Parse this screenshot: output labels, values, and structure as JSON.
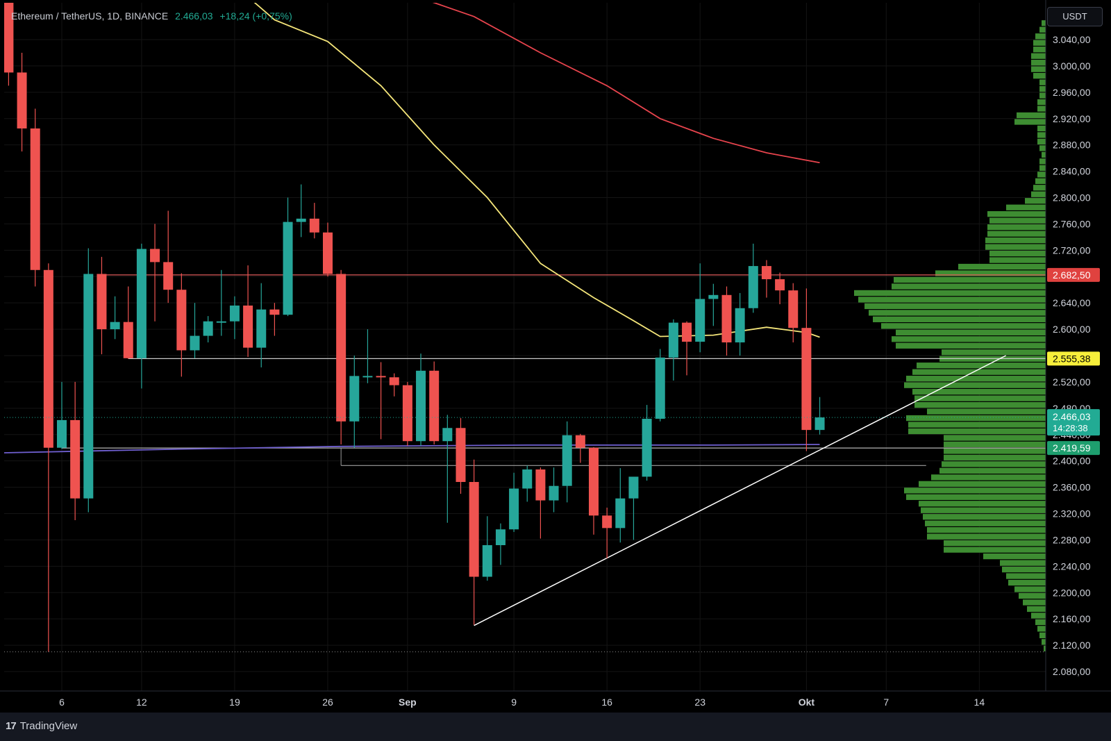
{
  "header": {
    "symbol": "Ethereum / TetherUS, 1D, BINANCE",
    "last_price": "2.466,03",
    "change": "+18,24 (+0,75%)",
    "currency": "USDT"
  },
  "footer": {
    "brand": "TradingView"
  },
  "colors": {
    "up": "#26a69a",
    "down": "#ef5350",
    "ma_fast": "#f5e67a",
    "ma_slow": "#e8444d",
    "ma_long": "#6f5fd0",
    "volume_profile": "#3e8d32",
    "trendline": "#ffffff"
  },
  "chart_data": {
    "type": "candlestick",
    "y_axis": {
      "ticks": [
        "3.040,00",
        "3.000,00",
        "2.960,00",
        "2.920,00",
        "2.880,00",
        "2.840,00",
        "2.800,00",
        "2.760,00",
        "2.720,00",
        "2.680,00",
        "2.640,00",
        "2.600,00",
        "2.560,00",
        "2.520,00",
        "2.480,00",
        "2.440,00",
        "2.400,00",
        "2.360,00",
        "2.320,00",
        "2.280,00",
        "2.240,00",
        "2.200,00",
        "2.160,00",
        "2.120,00",
        "2.080,00"
      ],
      "tick_values": [
        3040,
        3000,
        2960,
        2920,
        2880,
        2840,
        2800,
        2760,
        2720,
        2680,
        2640,
        2600,
        2560,
        2520,
        2480,
        2440,
        2400,
        2360,
        2320,
        2280,
        2240,
        2200,
        2160,
        2120,
        2080
      ]
    },
    "x_axis": {
      "labels": [
        {
          "text": "6",
          "date": "2024-08-06",
          "bold": false
        },
        {
          "text": "12",
          "date": "2024-08-12",
          "bold": false
        },
        {
          "text": "19",
          "date": "2024-08-19",
          "bold": false
        },
        {
          "text": "26",
          "date": "2024-08-26",
          "bold": false
        },
        {
          "text": "Sep",
          "date": "2024-09-01",
          "bold": true
        },
        {
          "text": "9",
          "date": "2024-09-09",
          "bold": false
        },
        {
          "text": "16",
          "date": "2024-09-16",
          "bold": false
        },
        {
          "text": "23",
          "date": "2024-09-23",
          "bold": false
        },
        {
          "text": "Okt",
          "date": "2024-10-01",
          "bold": true
        },
        {
          "text": "7",
          "date": "2024-10-07",
          "bold": false
        },
        {
          "text": "14",
          "date": "2024-10-14",
          "bold": false
        }
      ]
    },
    "candles": [
      {
        "date": "2024-08-02",
        "o": 3210,
        "h": 3250,
        "c": 2990,
        "l": 2970
      },
      {
        "date": "2024-08-03",
        "o": 2990,
        "h": 3020,
        "c": 2905,
        "l": 2870
      },
      {
        "date": "2024-08-04",
        "o": 2905,
        "h": 2935,
        "c": 2690,
        "l": 2665
      },
      {
        "date": "2024-08-05",
        "o": 2690,
        "h": 2700,
        "c": 2420,
        "l": 2110
      },
      {
        "date": "2024-08-06",
        "o": 2420,
        "h": 2520,
        "c": 2462,
        "l": 2418
      },
      {
        "date": "2024-08-07",
        "o": 2462,
        "h": 2520,
        "c": 2343,
        "l": 2310
      },
      {
        "date": "2024-08-08",
        "o": 2343,
        "h": 2723,
        "c": 2684,
        "l": 2322
      },
      {
        "date": "2024-08-09",
        "o": 2684,
        "h": 2710,
        "c": 2600,
        "l": 2562
      },
      {
        "date": "2024-08-10",
        "o": 2600,
        "h": 2650,
        "c": 2611,
        "l": 2585
      },
      {
        "date": "2024-08-11",
        "o": 2611,
        "h": 2665,
        "c": 2556,
        "l": 2555
      },
      {
        "date": "2024-08-12",
        "o": 2556,
        "h": 2730,
        "c": 2722,
        "l": 2510
      },
      {
        "date": "2024-08-13",
        "o": 2722,
        "h": 2760,
        "c": 2702,
        "l": 2612
      },
      {
        "date": "2024-08-14",
        "o": 2702,
        "h": 2780,
        "c": 2660,
        "l": 2640
      },
      {
        "date": "2024-08-15",
        "o": 2660,
        "h": 2685,
        "c": 2568,
        "l": 2528
      },
      {
        "date": "2024-08-16",
        "o": 2568,
        "h": 2640,
        "c": 2590,
        "l": 2556
      },
      {
        "date": "2024-08-17",
        "o": 2590,
        "h": 2620,
        "c": 2612,
        "l": 2580
      },
      {
        "date": "2024-08-18",
        "o": 2612,
        "h": 2690,
        "c": 2612,
        "l": 2590
      },
      {
        "date": "2024-08-19",
        "o": 2612,
        "h": 2650,
        "c": 2636,
        "l": 2585
      },
      {
        "date": "2024-08-20",
        "o": 2636,
        "h": 2697,
        "c": 2572,
        "l": 2558
      },
      {
        "date": "2024-08-21",
        "o": 2572,
        "h": 2670,
        "c": 2630,
        "l": 2542
      },
      {
        "date": "2024-08-22",
        "o": 2630,
        "h": 2640,
        "c": 2622,
        "l": 2590
      },
      {
        "date": "2024-08-23",
        "o": 2622,
        "h": 2800,
        "c": 2763,
        "l": 2620
      },
      {
        "date": "2024-08-24",
        "o": 2763,
        "h": 2820,
        "c": 2768,
        "l": 2740
      },
      {
        "date": "2024-08-25",
        "o": 2768,
        "h": 2792,
        "c": 2747,
        "l": 2738
      },
      {
        "date": "2024-08-26",
        "o": 2747,
        "h": 2762,
        "c": 2684,
        "l": 2680
      },
      {
        "date": "2024-08-27",
        "o": 2684,
        "h": 2690,
        "c": 2460,
        "l": 2425
      },
      {
        "date": "2024-08-28",
        "o": 2460,
        "h": 2560,
        "c": 2529,
        "l": 2420
      },
      {
        "date": "2024-08-29",
        "o": 2529,
        "h": 2600,
        "c": 2529,
        "l": 2518
      },
      {
        "date": "2024-08-30",
        "o": 2529,
        "h": 2550,
        "c": 2527,
        "l": 2433
      },
      {
        "date": "2024-08-31",
        "o": 2527,
        "h": 2533,
        "c": 2515,
        "l": 2498
      },
      {
        "date": "2024-09-01",
        "o": 2515,
        "h": 2520,
        "c": 2430,
        "l": 2423
      },
      {
        "date": "2024-09-02",
        "o": 2430,
        "h": 2563,
        "c": 2537,
        "l": 2423
      },
      {
        "date": "2024-09-03",
        "o": 2537,
        "h": 2551,
        "c": 2430,
        "l": 2425
      },
      {
        "date": "2024-09-04",
        "o": 2430,
        "h": 2470,
        "c": 2450,
        "l": 2306
      },
      {
        "date": "2024-09-05",
        "o": 2450,
        "h": 2465,
        "c": 2368,
        "l": 2350
      },
      {
        "date": "2024-09-06",
        "o": 2368,
        "h": 2402,
        "c": 2224,
        "l": 2151
      },
      {
        "date": "2024-09-07",
        "o": 2224,
        "h": 2316,
        "c": 2272,
        "l": 2218
      },
      {
        "date": "2024-09-08",
        "o": 2272,
        "h": 2305,
        "c": 2296,
        "l": 2242
      },
      {
        "date": "2024-09-09",
        "o": 2296,
        "h": 2382,
        "c": 2358,
        "l": 2292
      },
      {
        "date": "2024-09-10",
        "o": 2358,
        "h": 2393,
        "c": 2387,
        "l": 2338
      },
      {
        "date": "2024-09-11",
        "o": 2387,
        "h": 2390,
        "c": 2340,
        "l": 2282
      },
      {
        "date": "2024-09-12",
        "o": 2340,
        "h": 2390,
        "c": 2362,
        "l": 2322
      },
      {
        "date": "2024-09-13",
        "o": 2362,
        "h": 2460,
        "c": 2439,
        "l": 2337
      },
      {
        "date": "2024-09-14",
        "o": 2439,
        "h": 2441,
        "c": 2420,
        "l": 2397
      },
      {
        "date": "2024-09-15",
        "o": 2420,
        "h": 2421,
        "c": 2317,
        "l": 2288
      },
      {
        "date": "2024-09-16",
        "o": 2317,
        "h": 2329,
        "c": 2298,
        "l": 2252
      },
      {
        "date": "2024-09-17",
        "o": 2298,
        "h": 2389,
        "c": 2343,
        "l": 2276
      },
      {
        "date": "2024-09-18",
        "o": 2343,
        "h": 2375,
        "c": 2376,
        "l": 2280
      },
      {
        "date": "2024-09-19",
        "o": 2376,
        "h": 2485,
        "c": 2464,
        "l": 2370
      },
      {
        "date": "2024-09-20",
        "o": 2464,
        "h": 2570,
        "c": 2557,
        "l": 2460
      },
      {
        "date": "2024-09-21",
        "o": 2557,
        "h": 2615,
        "c": 2610,
        "l": 2522
      },
      {
        "date": "2024-09-22",
        "o": 2610,
        "h": 2612,
        "c": 2581,
        "l": 2530
      },
      {
        "date": "2024-09-23",
        "o": 2581,
        "h": 2700,
        "c": 2646,
        "l": 2565
      },
      {
        "date": "2024-09-24",
        "o": 2646,
        "h": 2669,
        "c": 2652,
        "l": 2605
      },
      {
        "date": "2024-09-25",
        "o": 2652,
        "h": 2665,
        "c": 2580,
        "l": 2560
      },
      {
        "date": "2024-09-26",
        "o": 2580,
        "h": 2655,
        "c": 2632,
        "l": 2560
      },
      {
        "date": "2024-09-27",
        "o": 2632,
        "h": 2730,
        "c": 2696,
        "l": 2625
      },
      {
        "date": "2024-09-28",
        "o": 2696,
        "h": 2705,
        "c": 2676,
        "l": 2648
      },
      {
        "date": "2024-09-29",
        "o": 2676,
        "h": 2686,
        "c": 2659,
        "l": 2638
      },
      {
        "date": "2024-09-30",
        "o": 2659,
        "h": 2670,
        "c": 2602,
        "l": 2580
      },
      {
        "date": "2024-10-01",
        "o": 2602,
        "h": 2662,
        "c": 2447,
        "l": 2415
      },
      {
        "date": "2024-10-02",
        "o": 2447,
        "h": 2497,
        "c": 2466,
        "l": 2440
      }
    ],
    "moving_averages": [
      {
        "color": "#f5e67a",
        "points": [
          [
            "2024-08-11",
            3260
          ],
          [
            "2024-08-14",
            3205
          ],
          [
            "2024-08-18",
            3140
          ],
          [
            "2024-08-22",
            3070
          ],
          [
            "2024-08-26",
            3037
          ],
          [
            "2024-08-30",
            2970
          ],
          [
            "2024-09-03",
            2880
          ],
          [
            "2024-09-07",
            2800
          ],
          [
            "2024-09-11",
            2700
          ],
          [
            "2024-09-15",
            2648
          ],
          [
            "2024-09-18",
            2613
          ],
          [
            "2024-09-20",
            2589
          ],
          [
            "2024-09-24",
            2591
          ],
          [
            "2024-09-28",
            2603
          ],
          [
            "2024-10-01",
            2595
          ],
          [
            "2024-10-02",
            2588
          ]
        ]
      },
      {
        "color": "#e8444d",
        "points": [
          [
            "2024-08-09",
            3270
          ],
          [
            "2024-08-14",
            3230
          ],
          [
            "2024-08-20",
            3170
          ],
          [
            "2024-08-26",
            3143
          ],
          [
            "2024-09-01",
            3110
          ],
          [
            "2024-09-06",
            3075
          ],
          [
            "2024-09-11",
            3020
          ],
          [
            "2024-09-16",
            2970
          ],
          [
            "2024-09-20",
            2920
          ],
          [
            "2024-09-24",
            2890
          ],
          [
            "2024-09-28",
            2868
          ],
          [
            "2024-10-02",
            2853
          ]
        ]
      },
      {
        "color": "#6f5fd0",
        "points": [
          [
            "2024-08-01",
            2412
          ],
          [
            "2024-08-15",
            2418
          ],
          [
            "2024-08-27",
            2422
          ],
          [
            "2024-09-10",
            2424
          ],
          [
            "2024-09-24",
            2424
          ],
          [
            "2024-10-02",
            2425
          ]
        ]
      }
    ],
    "levels": [
      {
        "value": 2682.5,
        "label": "2.682,50",
        "color": "#e05a5a",
        "label_bg": "#e0423f",
        "label_color": "#ffffff",
        "from": "2024-08-09"
      },
      {
        "value": 2555.38,
        "label": "2.555,38",
        "color": "#c9c9c9",
        "label_bg": "#f7ef3b",
        "label_color": "#000000",
        "from": "2024-08-11"
      },
      {
        "value": 2419.59,
        "label": "2.419,59",
        "color": "#b5b5b5",
        "label_bg": "#1e9e6e",
        "label_color": "#ffffff",
        "from": "2024-08-06"
      },
      {
        "value": 2393,
        "label": "",
        "color": "#9e9e9e",
        "label_bg": "",
        "label_color": "",
        "from": "2024-08-27",
        "to": "2024-10-10"
      }
    ],
    "last_price_badge": {
      "price": "2.466,03",
      "countdown": "14:28:38",
      "bg": "#22ab94",
      "value": 2466.03
    },
    "trendlines": [
      {
        "from": [
          "2024-09-06",
          2150
        ],
        "to": [
          "2024-10-16",
          2560
        ],
        "color": "#ffffff"
      }
    ],
    "volume_profile": {
      "bin_size": 10,
      "rows": [
        [
          3060,
          2
        ],
        [
          3050,
          3
        ],
        [
          3040,
          5
        ],
        [
          3030,
          6
        ],
        [
          3020,
          6
        ],
        [
          3010,
          7
        ],
        [
          3000,
          7
        ],
        [
          2990,
          7
        ],
        [
          2980,
          6
        ],
        [
          2970,
          3
        ],
        [
          2960,
          3
        ],
        [
          2950,
          3
        ],
        [
          2940,
          4
        ],
        [
          2930,
          4
        ],
        [
          2920,
          14
        ],
        [
          2910,
          15
        ],
        [
          2900,
          4
        ],
        [
          2890,
          4
        ],
        [
          2880,
          4
        ],
        [
          2870,
          3
        ],
        [
          2860,
          2
        ],
        [
          2850,
          3
        ],
        [
          2840,
          3
        ],
        [
          2830,
          4
        ],
        [
          2820,
          5
        ],
        [
          2810,
          6
        ],
        [
          2800,
          7
        ],
        [
          2790,
          10
        ],
        [
          2780,
          19
        ],
        [
          2770,
          28
        ],
        [
          2760,
          27
        ],
        [
          2750,
          28
        ],
        [
          2740,
          28
        ],
        [
          2730,
          29
        ],
        [
          2720,
          29
        ],
        [
          2710,
          27
        ],
        [
          2700,
          27
        ],
        [
          2690,
          42
        ],
        [
          2680,
          53
        ],
        [
          2670,
          73
        ],
        [
          2660,
          74
        ],
        [
          2650,
          92
        ],
        [
          2640,
          90
        ],
        [
          2630,
          87
        ],
        [
          2620,
          85
        ],
        [
          2610,
          83
        ],
        [
          2600,
          79
        ],
        [
          2590,
          72
        ],
        [
          2580,
          74
        ],
        [
          2570,
          72
        ],
        [
          2560,
          50
        ],
        [
          2550,
          51
        ],
        [
          2540,
          62
        ],
        [
          2530,
          64
        ],
        [
          2520,
          67
        ],
        [
          2510,
          68
        ],
        [
          2500,
          64
        ],
        [
          2490,
          63
        ],
        [
          2480,
          63
        ],
        [
          2470,
          57
        ],
        [
          2460,
          67
        ],
        [
          2450,
          66
        ],
        [
          2440,
          66
        ],
        [
          2430,
          49
        ],
        [
          2420,
          49
        ],
        [
          2410,
          49
        ],
        [
          2400,
          49
        ],
        [
          2390,
          50
        ],
        [
          2380,
          51
        ],
        [
          2370,
          55
        ],
        [
          2360,
          61
        ],
        [
          2350,
          68
        ],
        [
          2340,
          67
        ],
        [
          2330,
          61
        ],
        [
          2320,
          60
        ],
        [
          2310,
          59
        ],
        [
          2300,
          58
        ],
        [
          2290,
          57
        ],
        [
          2280,
          57
        ],
        [
          2270,
          49
        ],
        [
          2260,
          49
        ],
        [
          2250,
          30
        ],
        [
          2240,
          22
        ],
        [
          2230,
          21
        ],
        [
          2220,
          19
        ],
        [
          2210,
          18
        ],
        [
          2200,
          15
        ],
        [
          2190,
          13
        ],
        [
          2180,
          11
        ],
        [
          2170,
          9
        ],
        [
          2160,
          7
        ],
        [
          2150,
          5
        ],
        [
          2140,
          4
        ],
        [
          2130,
          3
        ],
        [
          2120,
          2
        ],
        [
          2110,
          1
        ]
      ]
    }
  }
}
